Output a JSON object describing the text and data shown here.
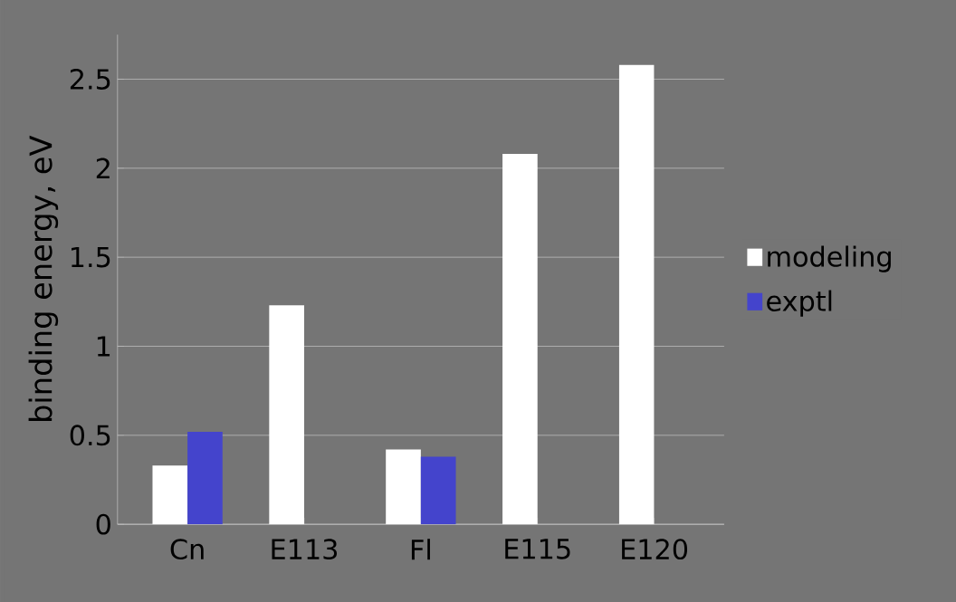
{
  "chart_data": {
    "type": "bar",
    "ylabel": "binding energy, eV",
    "categories": [
      "Cn",
      "E113",
      "Fl",
      "E115",
      "E120"
    ],
    "series": [
      {
        "name": "modeling",
        "color": "#ffffff",
        "values": [
          0.33,
          1.23,
          0.42,
          2.08,
          2.58
        ]
      },
      {
        "name": "exptl",
        "color": "#4444cc",
        "values": [
          0.52,
          null,
          0.38,
          null,
          null
        ]
      }
    ],
    "ylim": [
      0,
      2.75
    ],
    "yticks": [
      0,
      0.5,
      1,
      1.5,
      2,
      2.5
    ],
    "grid": "y",
    "legend": "right"
  }
}
